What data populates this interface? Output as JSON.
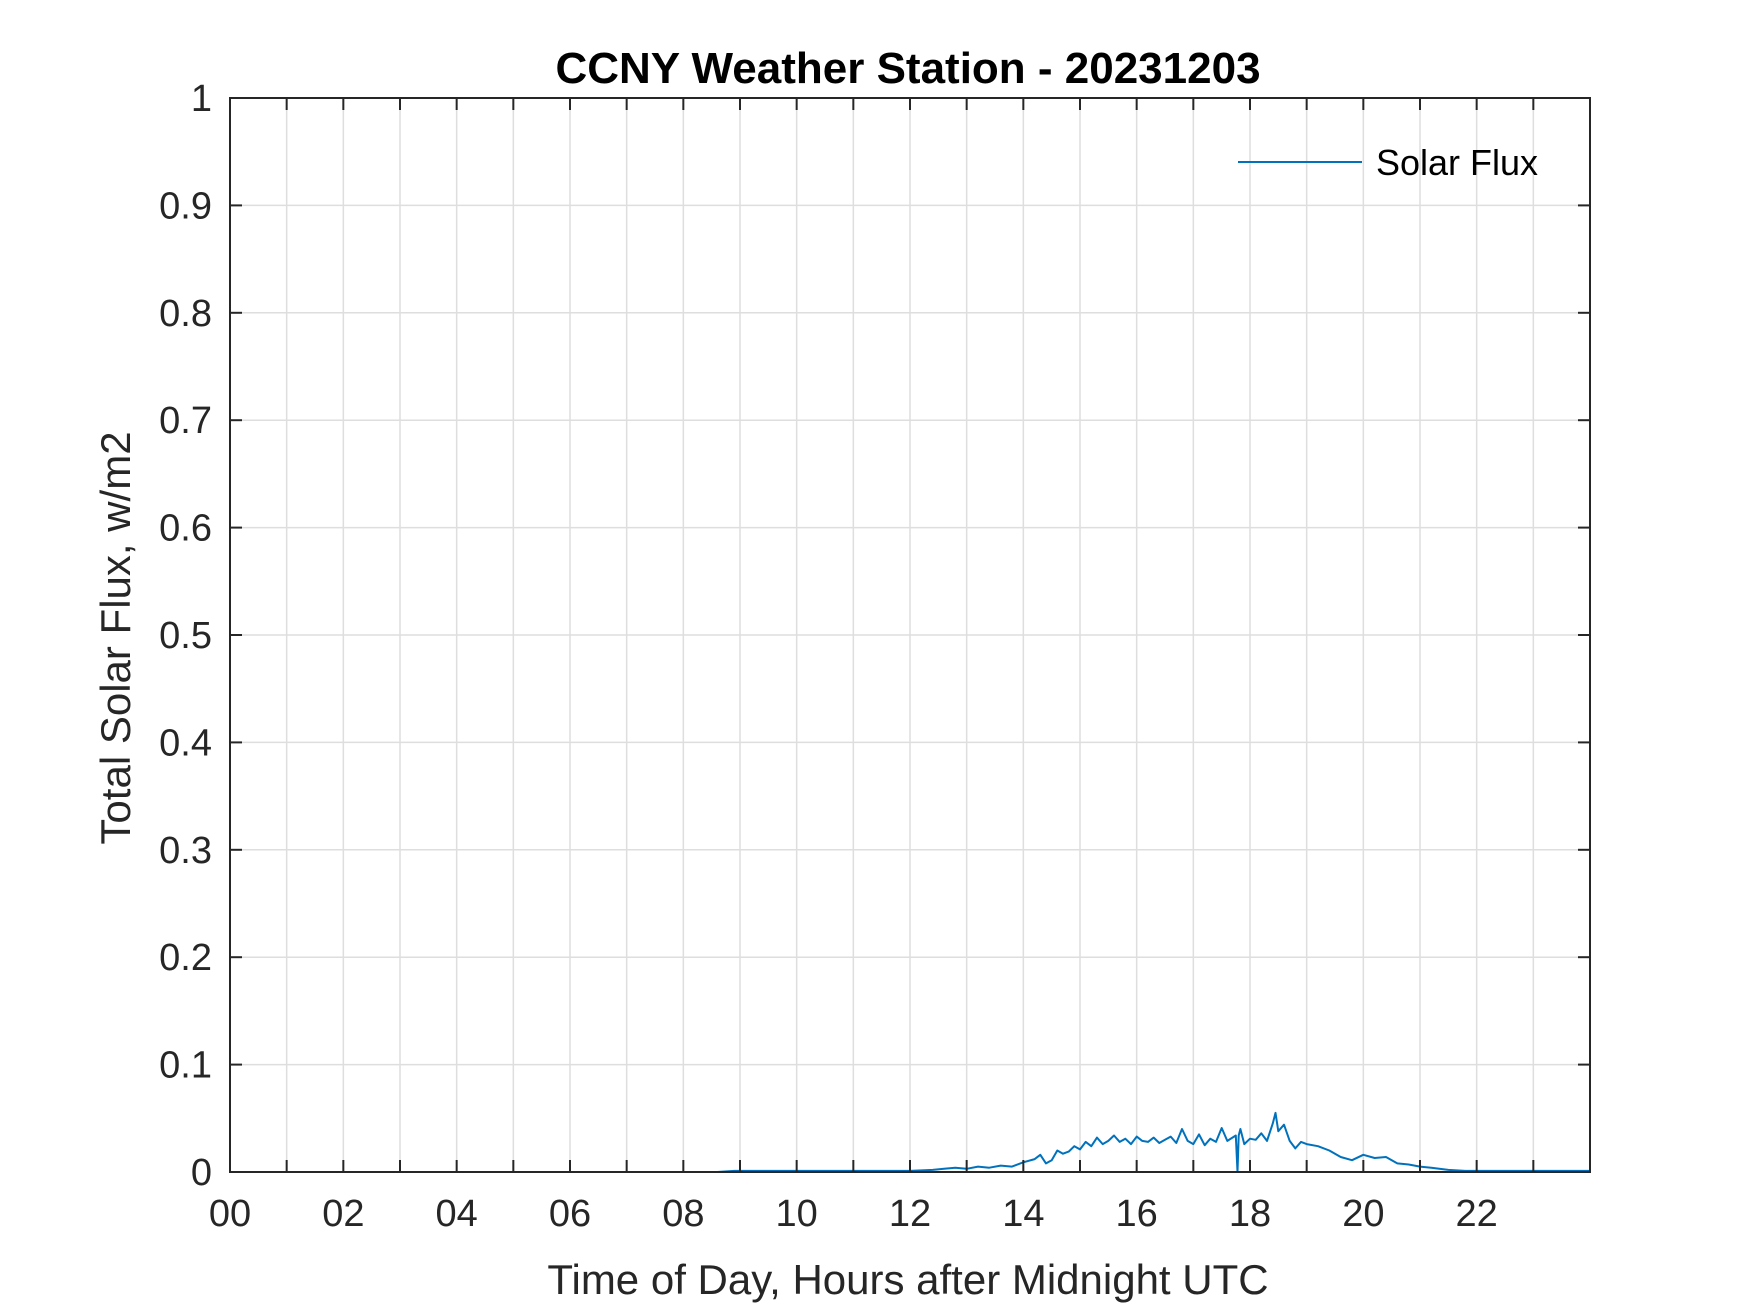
{
  "chart_data": {
    "type": "line",
    "title": "CCNY Weather Station - 20231203",
    "xlabel": "Time of Day, Hours after Midnight UTC",
    "ylabel": "Total Solar Flux, w/m2",
    "xlim": [
      0,
      24
    ],
    "ylim": [
      0,
      1
    ],
    "x_ticks": [
      0,
      2,
      4,
      6,
      8,
      10,
      12,
      14,
      16,
      18,
      20,
      22
    ],
    "x_tick_labels": [
      "00",
      "02",
      "04",
      "06",
      "08",
      "10",
      "12",
      "14",
      "16",
      "18",
      "20",
      "22"
    ],
    "x_grid_step": 1,
    "y_ticks": [
      0,
      0.1,
      0.2,
      0.3,
      0.4,
      0.5,
      0.6,
      0.7,
      0.8,
      0.9,
      1
    ],
    "y_tick_labels": [
      "0",
      "0.1",
      "0.2",
      "0.3",
      "0.4",
      "0.5",
      "0.6",
      "0.7",
      "0.8",
      "0.9",
      "1"
    ],
    "grid": true,
    "legend": {
      "entries": [
        "Solar Flux"
      ],
      "placement": "top-right"
    },
    "line_color": "#0072BD",
    "series": [
      {
        "name": "Solar Flux",
        "x": [
          0,
          8.6,
          8.9,
          9.5,
          10.0,
          10.5,
          11.0,
          11.5,
          12.0,
          12.4,
          12.6,
          12.8,
          13.0,
          13.2,
          13.4,
          13.6,
          13.8,
          14.0,
          14.2,
          14.3,
          14.4,
          14.5,
          14.6,
          14.7,
          14.8,
          14.9,
          15.0,
          15.1,
          15.2,
          15.3,
          15.4,
          15.5,
          15.6,
          15.7,
          15.8,
          15.9,
          16.0,
          16.1,
          16.2,
          16.3,
          16.4,
          16.5,
          16.6,
          16.7,
          16.8,
          16.9,
          17.0,
          17.1,
          17.2,
          17.3,
          17.4,
          17.5,
          17.6,
          17.75,
          17.78,
          17.8,
          17.83,
          17.9,
          18.0,
          18.1,
          18.2,
          18.3,
          18.4,
          18.45,
          18.5,
          18.6,
          18.7,
          18.8,
          18.9,
          19.0,
          19.2,
          19.4,
          19.6,
          19.8,
          20.0,
          20.2,
          20.4,
          20.6,
          20.8,
          21.0,
          21.2,
          21.5,
          21.8,
          22.0,
          23.0,
          24.0
        ],
        "y": [
          0,
          0,
          0.001,
          0.001,
          0.001,
          0.001,
          0.001,
          0.001,
          0.001,
          0.002,
          0.003,
          0.004,
          0.003,
          0.005,
          0.004,
          0.006,
          0.005,
          0.009,
          0.012,
          0.016,
          0.008,
          0.011,
          0.02,
          0.017,
          0.019,
          0.024,
          0.021,
          0.028,
          0.024,
          0.032,
          0.026,
          0.029,
          0.034,
          0.028,
          0.031,
          0.026,
          0.033,
          0.029,
          0.028,
          0.032,
          0.027,
          0.03,
          0.033,
          0.027,
          0.04,
          0.029,
          0.026,
          0.035,
          0.025,
          0.031,
          0.028,
          0.041,
          0.029,
          0.034,
          0.0,
          0.034,
          0.04,
          0.026,
          0.031,
          0.03,
          0.036,
          0.029,
          0.045,
          0.055,
          0.038,
          0.044,
          0.029,
          0.022,
          0.028,
          0.026,
          0.024,
          0.02,
          0.014,
          0.011,
          0.016,
          0.013,
          0.014,
          0.008,
          0.007,
          0.005,
          0.004,
          0.002,
          0.001,
          0.001,
          0.001,
          0.001
        ]
      }
    ]
  }
}
